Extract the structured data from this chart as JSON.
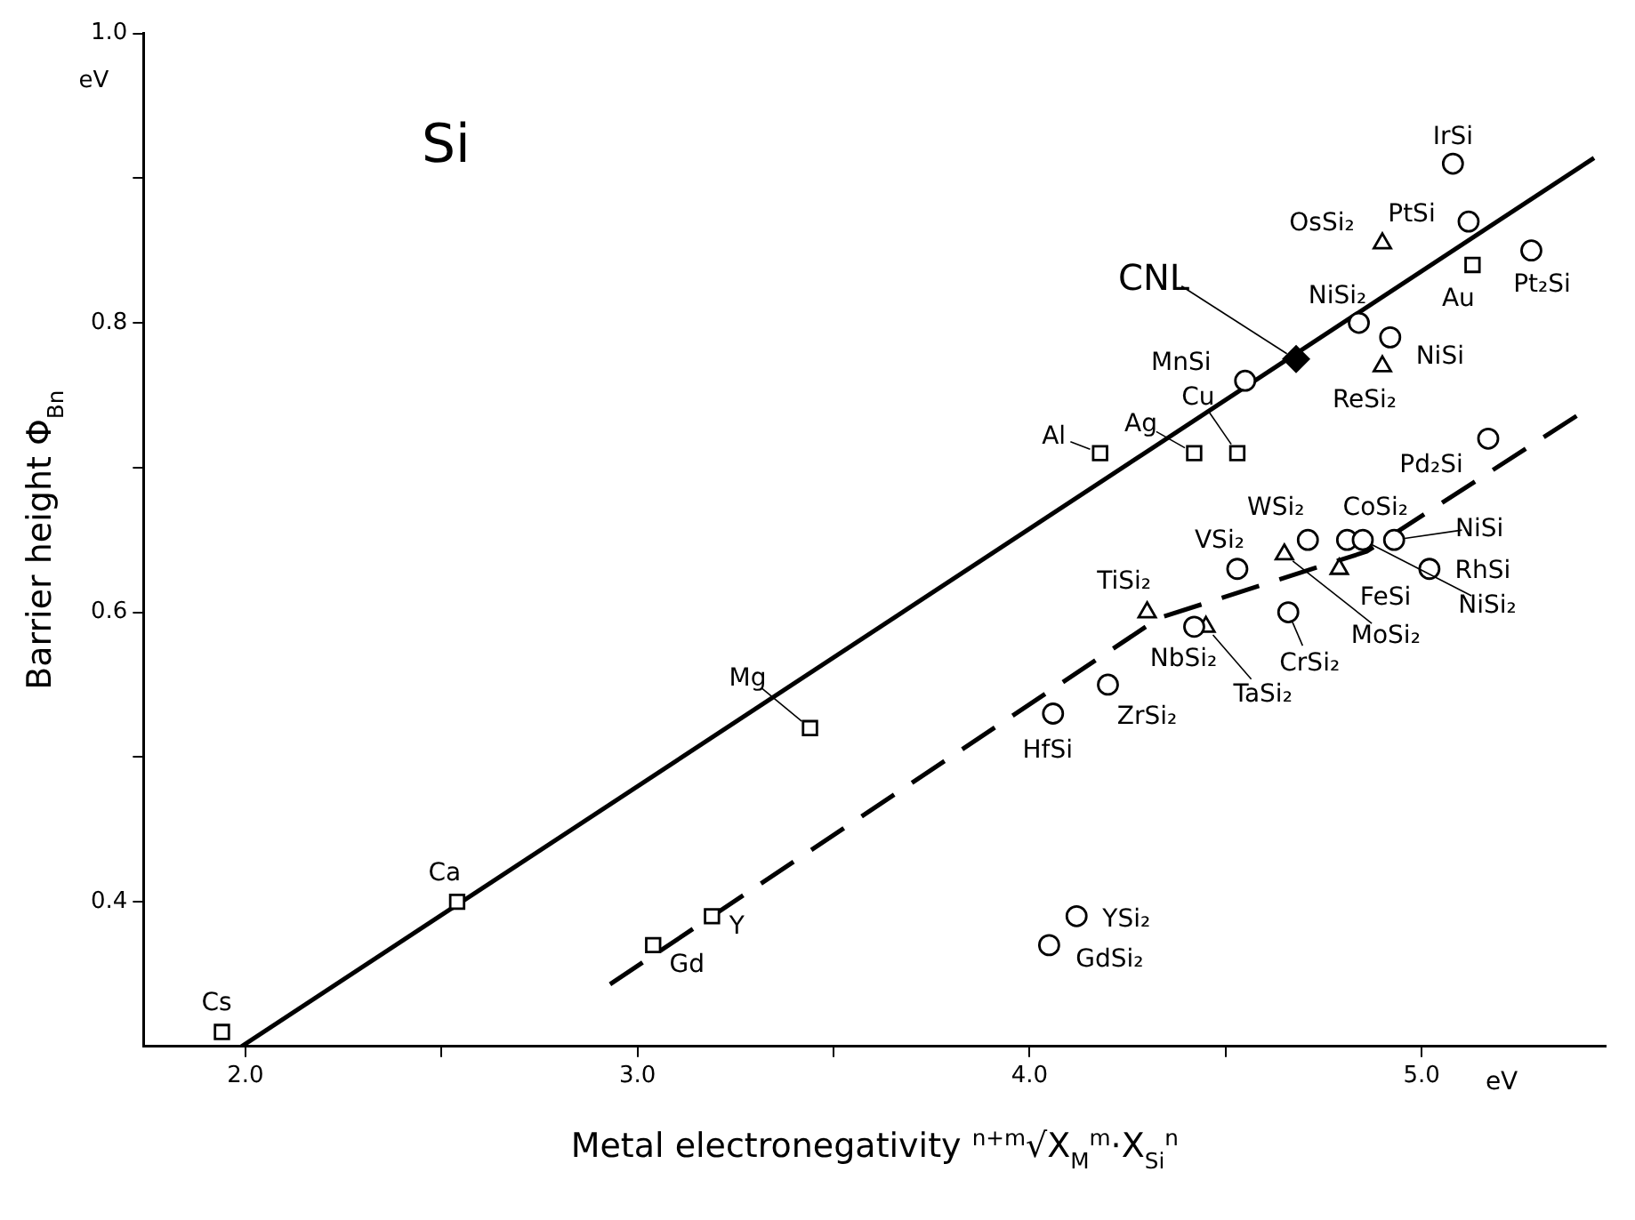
{
  "chart_data": {
    "type": "scatter",
    "xlabel": "Metal electronegativity $^{n+m}$√X$_{M}$$^{m}$·X$_{Si}$$^{n}$",
    "ylabel": "Barrier height Φ$_{Bn}$",
    "xlim": [
      1.74,
      5.47
    ],
    "xticks": [
      {
        "value": 2,
        "label": "2.0"
      },
      {
        "value": 2.5,
        "label": null
      },
      {
        "value": 3,
        "label": "3.0"
      },
      {
        "value": 3.5,
        "label": null
      },
      {
        "value": 4,
        "label": "4.0"
      },
      {
        "value": 4.5,
        "label": null
      },
      {
        "value": 5,
        "label": "5.0"
      }
    ],
    "ylim": [
      0.3,
      1.0
    ],
    "yticks": [
      {
        "value": 0.4,
        "label": "0.4"
      },
      {
        "value": 0.5,
        "label": null
      },
      {
        "value": 0.6,
        "label": "0.6"
      },
      {
        "value": 0.7,
        "label": null
      },
      {
        "value": 0.8,
        "label": "0.8"
      },
      {
        "value": 0.9,
        "label": null
      },
      {
        "value": 1,
        "label": "1.0"
      }
    ],
    "grid": false,
    "legend": false,
    "series": [
      {
        "type": "line",
        "marker": "none",
        "line_style": "solid",
        "color": "#000000",
        "x": [
          1.99,
          5.44
        ],
        "values": [
          0.3,
          0.914
        ]
      },
      {
        "type": "line",
        "marker": "none",
        "line_style": "dashed",
        "color": "#000000",
        "x": [
          2.93,
          4.33,
          4.86,
          5.42
        ],
        "values": [
          0.343,
          0.596,
          0.642,
          0.74
        ]
      },
      {
        "type": "scatter",
        "marker": "square",
        "color": "#000000",
        "x": [
          1.94,
          2.54,
          3.44,
          3.04,
          3.19,
          4.18,
          4.42,
          4.53,
          5.13
        ],
        "values": [
          0.31,
          0.4,
          0.52,
          0.37,
          0.39,
          0.71,
          0.71,
          0.71,
          0.84
        ]
      },
      {
        "type": "scatter",
        "marker": "circle",
        "color": "#000000",
        "x": [
          5.08,
          5.12,
          5.28,
          4.84,
          4.55,
          4.92,
          5.17,
          4.71,
          4.81,
          4.85,
          4.93,
          4.53,
          5.02,
          4.66,
          4.2,
          4.06,
          4.12,
          4.05,
          4.42
        ],
        "values": [
          0.91,
          0.87,
          0.85,
          0.8,
          0.76,
          0.79,
          0.72,
          0.65,
          0.65,
          0.65,
          0.65,
          0.63,
          0.63,
          0.6,
          0.55,
          0.53,
          0.39,
          0.37,
          0.59
        ]
      },
      {
        "type": "scatter",
        "marker": "triangle",
        "color": "#000000",
        "x": [
          4.9,
          4.9,
          4.3,
          4.45,
          4.65,
          4.79
        ],
        "values": [
          0.855,
          0.77,
          0.6,
          0.59,
          0.64,
          0.63
        ]
      },
      {
        "type": "scatter",
        "marker": "diamond",
        "color": "#000000",
        "x": [
          4.68
        ],
        "values": [
          0.775
        ]
      }
    ],
    "annotations": [
      "Si",
      "eV",
      "eV",
      {
        "text": "CNL",
        "x": 4.68,
        "y": 0.775
      },
      {
        "text": "IrSi",
        "x": 5.08,
        "y": 0.91
      },
      {
        "text": "PtSi",
        "x": 5.12,
        "y": 0.87
      },
      {
        "text": "Pt₂Si",
        "x": 5.28,
        "y": 0.85
      },
      {
        "text": "Au",
        "x": 5.13,
        "y": 0.84
      },
      {
        "text": "OsSi₂",
        "x": 4.9,
        "y": 0.855
      },
      {
        "text": "NiSi₂",
        "x": 4.84,
        "y": 0.8
      },
      {
        "text": "NiSi",
        "x": 4.92,
        "y": 0.79
      },
      {
        "text": "ReSi₂",
        "x": 4.9,
        "y": 0.77
      },
      {
        "text": "MnSi",
        "x": 4.55,
        "y": 0.76
      },
      {
        "text": "Cu",
        "x": 4.53,
        "y": 0.71
      },
      {
        "text": "Ag",
        "x": 4.42,
        "y": 0.71
      },
      {
        "text": "Al",
        "x": 4.18,
        "y": 0.71
      },
      {
        "text": "Pd₂Si",
        "x": 5.17,
        "y": 0.72
      },
      {
        "text": "WSi₂",
        "x": 4.71,
        "y": 0.65
      },
      {
        "text": "CoSi₂",
        "x": 4.81,
        "y": 0.65
      },
      {
        "text": "NiSi",
        "x": 4.93,
        "y": 0.65
      },
      {
        "text": "RhSi",
        "x": 5.02,
        "y": 0.63
      },
      {
        "text": "NiSi₂",
        "x": 4.85,
        "y": 0.65
      },
      {
        "text": "FeSi",
        "x": 4.79,
        "y": 0.63
      },
      {
        "text": "MoSi₂",
        "x": 4.65,
        "y": 0.64
      },
      {
        "text": "VSi₂",
        "x": 4.53,
        "y": 0.63
      },
      {
        "text": "TiSi₂",
        "x": 4.3,
        "y": 0.6
      },
      {
        "text": "NbSi₂",
        "x": 4.42,
        "y": 0.59
      },
      {
        "text": "TaSi₂",
        "x": 4.45,
        "y": 0.59
      },
      {
        "text": "CrSi₂",
        "x": 4.66,
        "y": 0.6
      },
      {
        "text": "ZrSi₂",
        "x": 4.2,
        "y": 0.55
      },
      {
        "text": "HfSi",
        "x": 4.06,
        "y": 0.53
      },
      {
        "text": "Mg",
        "x": 3.44,
        "y": 0.52
      },
      {
        "text": "Ca",
        "x": 2.54,
        "y": 0.4
      },
      {
        "text": "Cs",
        "x": 1.94,
        "y": 0.31
      },
      {
        "text": "Gd",
        "x": 3.04,
        "y": 0.37
      },
      {
        "text": "Y",
        "x": 3.19,
        "y": 0.39
      },
      {
        "text": "YSi₂",
        "x": 4.12,
        "y": 0.39
      },
      {
        "text": "GdSi₂",
        "x": 4.05,
        "y": 0.37
      }
    ]
  }
}
